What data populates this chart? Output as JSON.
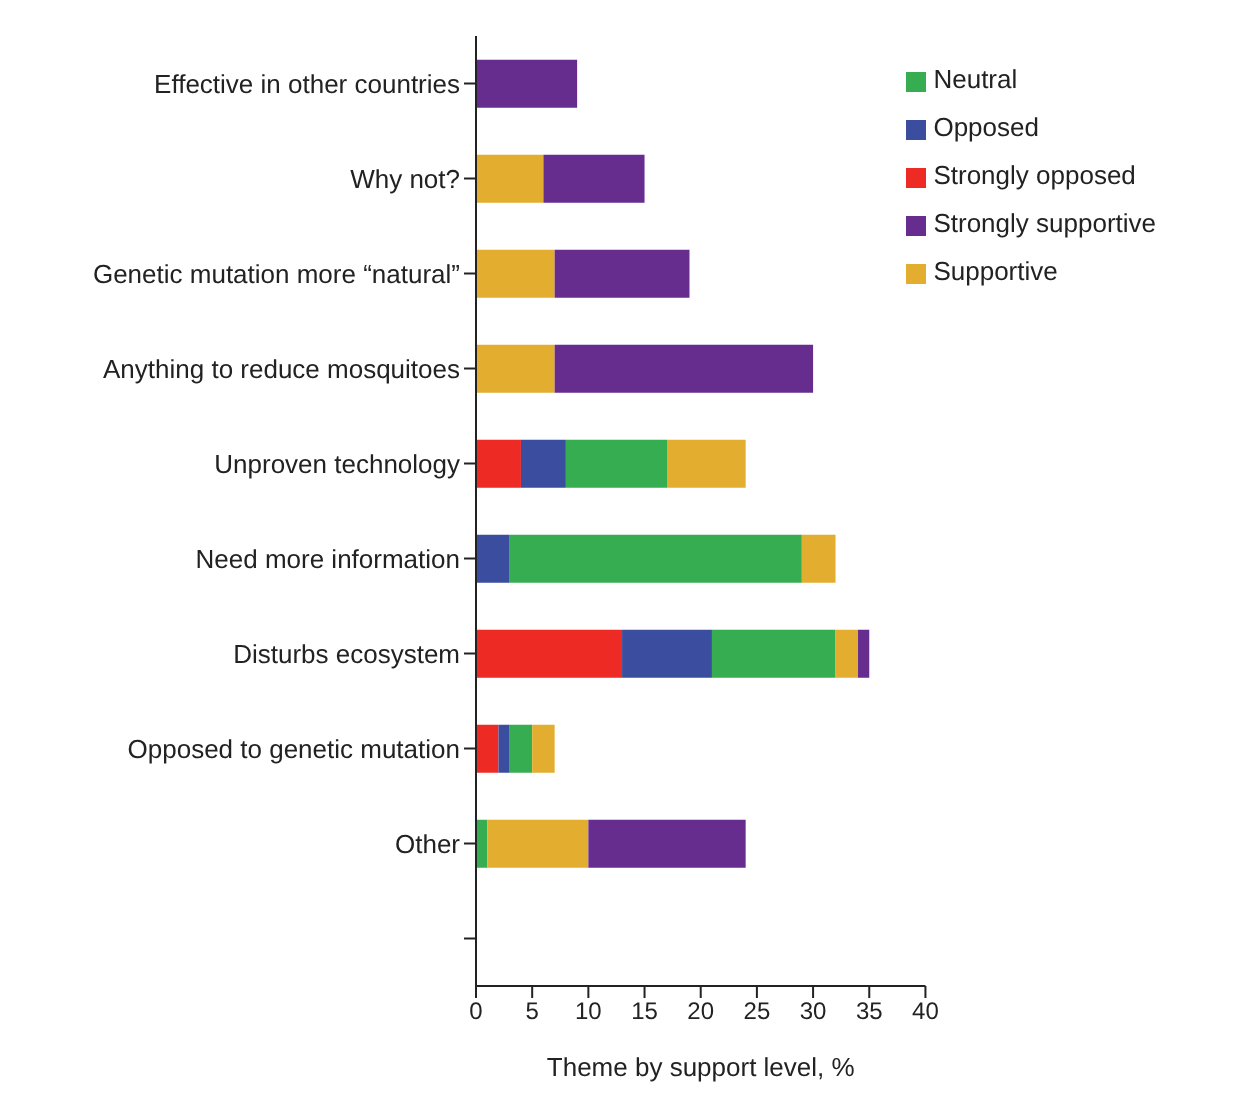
{
  "chart_data": {
    "type": "bar",
    "orientation": "horizontal",
    "stacked": true,
    "xlabel": "Theme by support level, %",
    "categories": [
      "Effective in other countries",
      "Why not?",
      "Genetic mutation more “natural”",
      "Anything to reduce mosquitoes",
      "Unproven technology",
      "Need more information",
      "Disturbs ecosystem",
      "Opposed to genetic mutation",
      "Other",
      null
    ],
    "series": [
      {
        "name": "Strongly opposed",
        "color": "#ee2a24",
        "values": [
          0,
          0,
          0,
          0,
          4,
          0,
          13,
          2,
          0,
          null
        ]
      },
      {
        "name": "Opposed",
        "color": "#3a4d9f",
        "values": [
          0,
          0,
          0,
          0,
          4,
          3,
          8,
          1,
          0,
          null
        ]
      },
      {
        "name": "Neutral",
        "color": "#37ad52",
        "values": [
          0,
          0,
          0,
          0,
          9,
          26,
          11,
          2,
          1,
          null
        ]
      },
      {
        "name": "Supportive",
        "color": "#e3ae2f",
        "values": [
          0,
          6,
          7,
          7,
          7,
          3,
          2,
          2,
          9,
          null
        ]
      },
      {
        "name": "Strongly supportive",
        "color": "#662d8f",
        "values": [
          9,
          9,
          12,
          23,
          0,
          0,
          1,
          0,
          14,
          null
        ]
      }
    ],
    "xlim": [
      0,
      40
    ],
    "xticks": [
      0,
      5,
      10,
      15,
      20,
      25,
      30,
      35,
      40
    ],
    "legend": "top right"
  }
}
